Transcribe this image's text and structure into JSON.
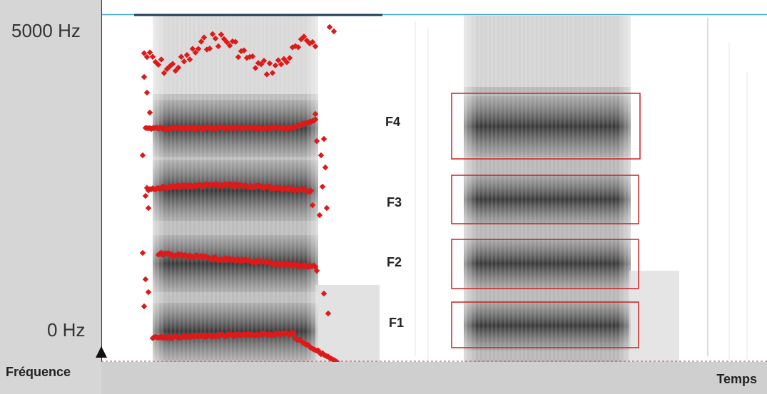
{
  "axes": {
    "y_top_label": "5000 Hz",
    "y_bottom_label": "0 Hz",
    "y_title": "Fréquence",
    "x_title": "Temps"
  },
  "formants": {
    "f4": "F4",
    "f3": "F3",
    "f2": "F2",
    "f1": "F1"
  },
  "colors": {
    "formant_marker": "#dd1a1a",
    "highlight_box": "#cc2222",
    "top_border": "#3aa4d4",
    "panel_gray": "#d6d6d6"
  }
}
